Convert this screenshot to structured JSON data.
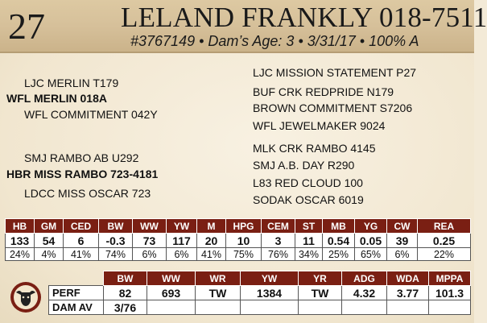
{
  "header": {
    "lot_number": "27",
    "name": "LELAND FRANKLY 018-7511",
    "subline": "#3767149 • Dam’s Age: 3 • 3/31/17 • 100% A"
  },
  "pedigree": {
    "sire": "WFL MERLIN 018A",
    "sire_sire": "LJC MERLIN T179",
    "sire_dam": "WFL COMMITMENT 042Y",
    "dam": "HBR  MISS RAMBO 723-4181",
    "dam_sire": "SMJ RAMBO AB U292",
    "dam_dam": "LDCC MISS OSCAR 723",
    "right": [
      "LJC MISSION STATEMENT P27",
      "BUF CRK REDPRIDE N179",
      "BROWN COMMITMENT S7206",
      "WFL JEWELMAKER 9024",
      "MLK CRK RAMBO 4145",
      "SMJ A.B. DAY R290",
      "L83 RED CLOUD 100",
      "SODAK OSCAR 6019"
    ]
  },
  "epd_table": {
    "headers": [
      "HB",
      "GM",
      "CED",
      "BW",
      "WW",
      "YW",
      "M",
      "HPG",
      "CEM",
      "ST",
      "MB",
      "YG",
      "CW",
      "REA"
    ],
    "values": [
      "133",
      "54",
      "6",
      "-0.3",
      "73",
      "117",
      "20",
      "10",
      "3",
      "11",
      "0.54",
      "0.05",
      "39",
      "0.25"
    ],
    "percentiles": [
      "24%",
      "4%",
      "41%",
      "74%",
      "6%",
      "6%",
      "41%",
      "75%",
      "76%",
      "34%",
      "25%",
      "65%",
      "6%",
      "22%"
    ]
  },
  "perf_table": {
    "headers": [
      "BW",
      "WW",
      "WR",
      "YW",
      "YR",
      "ADG",
      "WDA",
      "MPPA"
    ],
    "rows": [
      {
        "label": "PERF",
        "values": [
          "82",
          "693",
          "TW",
          "1384",
          "TW",
          "4.32",
          "3.77",
          "101.3"
        ]
      },
      {
        "label": "DAM AV",
        "values": [
          "3/76",
          "",
          "",
          "",
          "",
          "",
          "",
          ""
        ]
      }
    ]
  },
  "logo_icon": "bull-head-logo-icon",
  "colors": {
    "header_row": "#7a1f13",
    "header_band": "#d6c09a",
    "background": "#f3ead7"
  }
}
